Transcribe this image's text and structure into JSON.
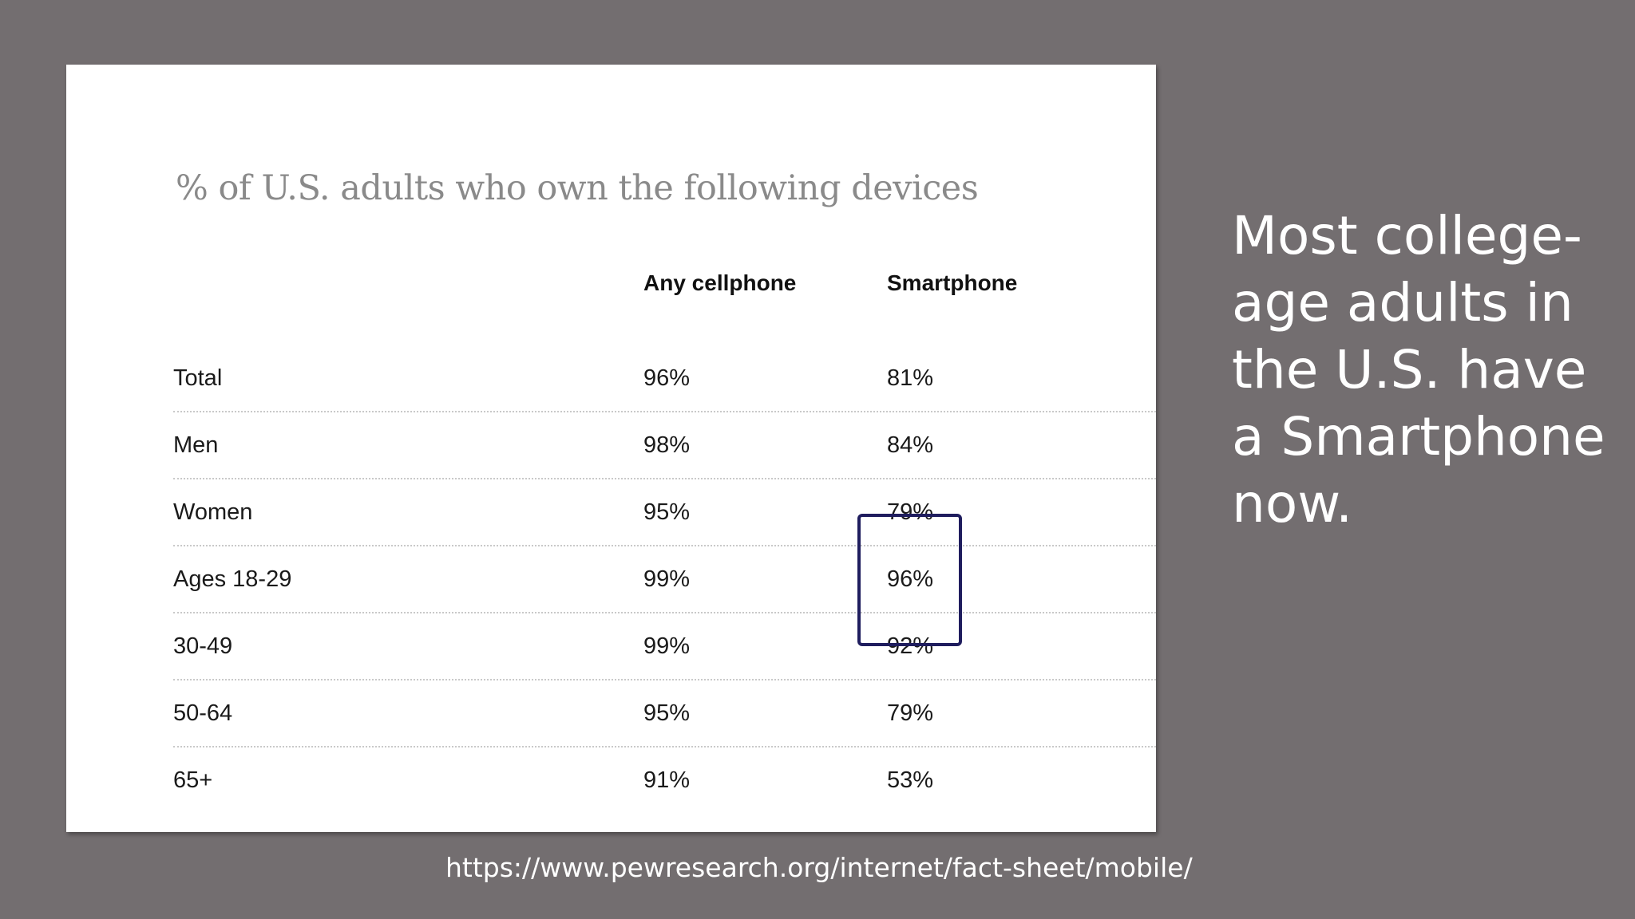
{
  "table": {
    "title": "% of U.S. adults who own the following devices",
    "columns": [
      "Any cellphone",
      "Smartphone"
    ],
    "rows": [
      {
        "label": "Total",
        "any_cellphone": "96%",
        "smartphone": "81%"
      },
      {
        "label": "Men",
        "any_cellphone": "98%",
        "smartphone": "84%"
      },
      {
        "label": "Women",
        "any_cellphone": "95%",
        "smartphone": "79%"
      },
      {
        "label": "Ages 18-29",
        "any_cellphone": "99%",
        "smartphone": "96%"
      },
      {
        "label": "30-49",
        "any_cellphone": "99%",
        "smartphone": "92%"
      },
      {
        "label": "50-64",
        "any_cellphone": "95%",
        "smartphone": "79%"
      },
      {
        "label": "65+",
        "any_cellphone": "91%",
        "smartphone": "53%"
      }
    ],
    "highlight_color": "#1f1d5e"
  },
  "side_text": "Most college-age adults in the U.S. have a Smartphone now.",
  "source_url": "https://www.pewresearch.org/internet/fact-sheet/mobile/",
  "colors": {
    "background": "#736e70",
    "card": "#ffffff",
    "title_text": "#8a8a8a",
    "side_text": "#ffffff"
  }
}
